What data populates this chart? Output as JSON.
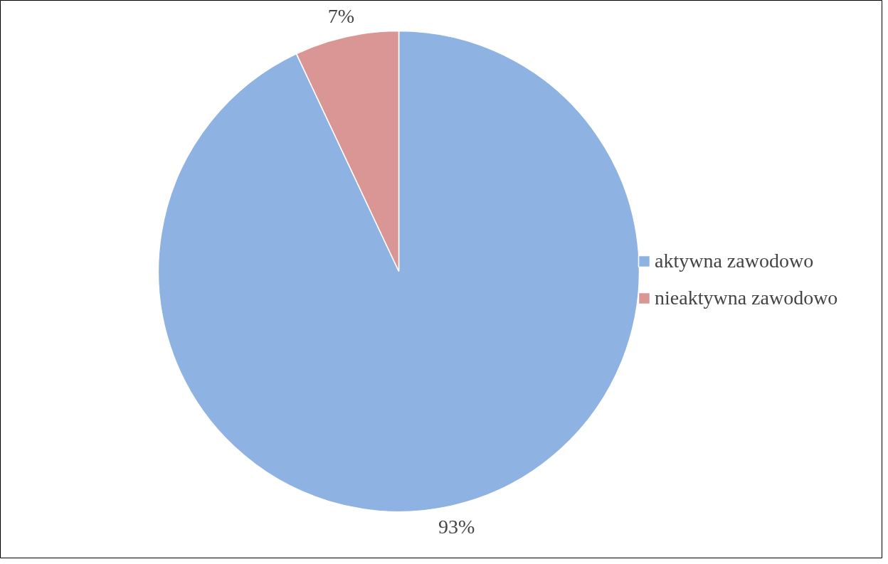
{
  "chart_data": {
    "type": "pie",
    "categories": [
      "aktywna zawodowo",
      "nieaktywna zawodowo"
    ],
    "values": [
      93,
      7
    ],
    "colors": [
      "#8eb3e2",
      "#d99694"
    ],
    "value_labels": [
      "93%",
      "7%"
    ],
    "legend": "right"
  }
}
